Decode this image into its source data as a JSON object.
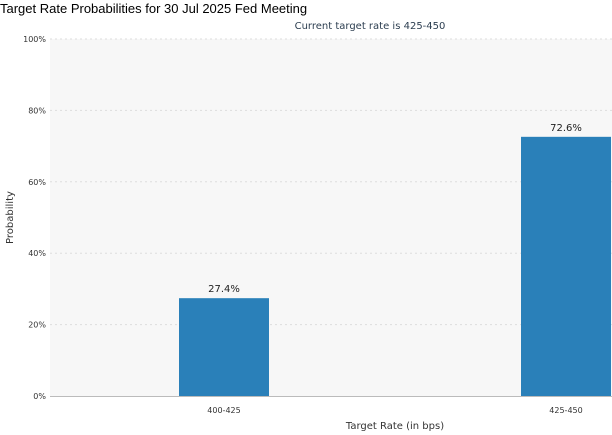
{
  "page": {
    "title": "Target Rate Probabilities for 30 Jul 2025 Fed Meeting"
  },
  "chart_data": {
    "type": "bar",
    "subtitle": "Current target rate is 425-450",
    "categories": [
      "400-425",
      "425-450"
    ],
    "values": [
      27.4,
      72.6
    ],
    "value_labels": [
      "27.4%",
      "72.6%"
    ],
    "xlabel": "Target Rate (in bps)",
    "ylabel": "Probability",
    "ylim": [
      0,
      100
    ],
    "yticks": [
      0,
      20,
      40,
      60,
      80,
      100
    ],
    "ytick_labels": [
      "0%",
      "20%",
      "40%",
      "60%",
      "80%",
      "100%"
    ],
    "grid": true,
    "legend": "none",
    "colors": {
      "bar": "#2a80b9",
      "plot_background": "#f7f7f7",
      "grid": "#dddddd",
      "text": "#333333",
      "subtitle_text": "#2c3e50"
    }
  }
}
